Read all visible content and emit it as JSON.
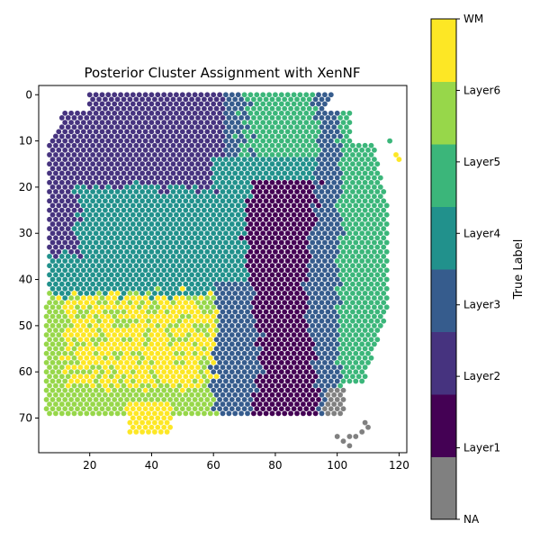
{
  "chart_data": {
    "type": "scatter",
    "title": "Posterior Cluster Assignment with XenNF",
    "xlabel": "",
    "ylabel": "",
    "xlim": [
      3.5,
      122.5
    ],
    "ylim": [
      77.5,
      -2
    ],
    "y_inverted": true,
    "x_ticks": [
      20,
      40,
      60,
      80,
      100,
      120
    ],
    "y_ticks": [
      0,
      10,
      20,
      30,
      40,
      50,
      60,
      70
    ],
    "colorbar": {
      "label": "True Label",
      "categories": [
        "NA",
        "Layer1",
        "Layer2",
        "Layer3",
        "Layer4",
        "Layer5",
        "Layer6",
        "WM"
      ],
      "tick_labels": [
        "NA",
        "Layer1",
        "Layer2",
        "Layer3",
        "Layer4",
        "Layer5",
        "Layer6",
        "WM"
      ],
      "colors": [
        "#808080",
        "#440154",
        "#46337f",
        "#365c8d",
        "#21918c",
        "#3bb67a",
        "#97d74a",
        "#fde725"
      ]
    },
    "grid": "hexagonal spot grid, approx 1 spot per unit in x and y",
    "regions_description": "spots colored by predicted layer; WM and Layer6 on lower-left, Layer2 upper-left, Layer1 band centered x=75-90, Layer3/Layer5 on right, NA spots scattered at bottom-right",
    "series": [
      {
        "name": "WM",
        "approx_points": [
          [
            20,
            55
          ],
          [
            30,
            50
          ],
          [
            40,
            45
          ],
          [
            35,
            70
          ],
          [
            45,
            55
          ]
        ]
      },
      {
        "name": "Layer6",
        "approx_points": [
          [
            10,
            60
          ],
          [
            20,
            65
          ],
          [
            15,
            55
          ],
          [
            25,
            60
          ]
        ]
      },
      {
        "name": "Layer5",
        "approx_points": [
          [
            70,
            5
          ],
          [
            105,
            20
          ],
          [
            110,
            50
          ],
          [
            100,
            60
          ]
        ]
      },
      {
        "name": "Layer4",
        "approx_points": [
          [
            25,
            40
          ],
          [
            50,
            30
          ],
          [
            60,
            25
          ],
          [
            45,
            35
          ]
        ]
      },
      {
        "name": "Layer3",
        "approx_points": [
          [
            95,
            30
          ],
          [
            70,
            15
          ],
          [
            65,
            55
          ],
          [
            90,
            60
          ]
        ]
      },
      {
        "name": "Layer2",
        "approx_points": [
          [
            25,
            10
          ],
          [
            15,
            25
          ],
          [
            45,
            15
          ],
          [
            55,
            10
          ]
        ]
      },
      {
        "name": "Layer1",
        "approx_points": [
          [
            80,
            30
          ],
          [
            82,
            50
          ],
          [
            78,
            65
          ],
          [
            70,
            20
          ]
        ]
      },
      {
        "name": "NA",
        "approx_points": [
          [
            102,
            75
          ],
          [
            110,
            68
          ],
          [
            115,
            65
          ],
          [
            105,
            72
          ]
        ]
      }
    ]
  }
}
